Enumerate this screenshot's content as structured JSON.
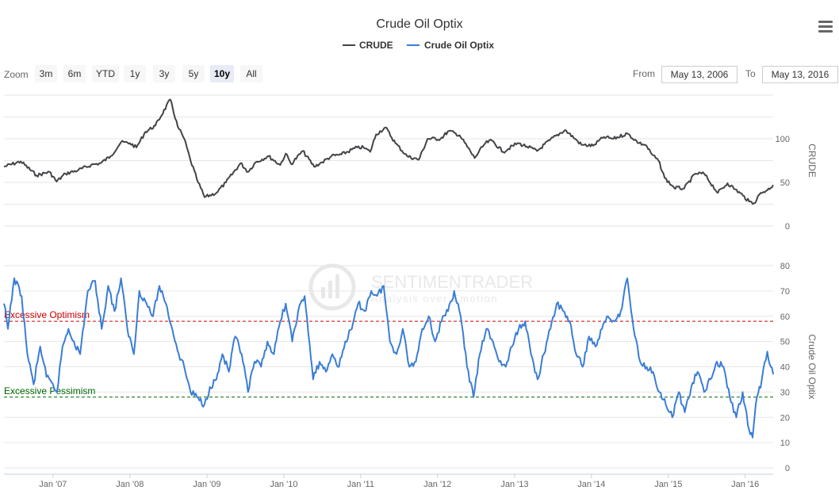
{
  "title": "Crude Oil Optix",
  "legend": [
    {
      "name": "CRUDE",
      "color": "#434348"
    },
    {
      "name": "Crude Oil Optix",
      "color": "#3a7dd6"
    }
  ],
  "zoom": {
    "label": "Zoom",
    "buttons": [
      "3m",
      "6m",
      "YTD",
      "1y",
      "3y",
      "5y",
      "10y",
      "All"
    ],
    "selected": "10y"
  },
  "range": {
    "from_label": "From",
    "from_value": "May 13, 2006",
    "to_label": "To",
    "to_value": "May 13, 2016"
  },
  "watermark": {
    "line1": "SENTIMENTRADER",
    "line2": "Analysis over Emotion"
  },
  "chart_data": {
    "type": "line",
    "x_range": [
      "2006-05-13",
      "2016-05-13"
    ],
    "x_ticks": [
      "Jan '07",
      "Jan '08",
      "Jan '09",
      "Jan '10",
      "Jan '11",
      "Jan '12",
      "Jan '13",
      "Jan '14",
      "Jan '15",
      "Jan '16"
    ],
    "panes": [
      {
        "series_name": "CRUDE",
        "color": "#434348",
        "axis_title": "CRUDE",
        "ylim": [
          0,
          150
        ],
        "y_ticks": [
          0,
          50,
          100
        ],
        "points": [
          [
            "2006-05-13",
            68
          ],
          [
            "2006-08-01",
            74
          ],
          [
            "2006-10-15",
            58
          ],
          [
            "2006-12-15",
            62
          ],
          [
            "2007-01-18",
            51
          ],
          [
            "2007-03-01",
            60
          ],
          [
            "2007-05-01",
            64
          ],
          [
            "2007-07-01",
            70
          ],
          [
            "2007-08-15",
            72
          ],
          [
            "2007-10-01",
            80
          ],
          [
            "2007-11-20",
            96
          ],
          [
            "2008-01-01",
            95
          ],
          [
            "2008-02-01",
            90
          ],
          [
            "2008-03-15",
            108
          ],
          [
            "2008-05-01",
            115
          ],
          [
            "2008-07-11",
            145
          ],
          [
            "2008-08-15",
            114
          ],
          [
            "2008-09-15",
            100
          ],
          [
            "2008-10-15",
            75
          ],
          [
            "2008-11-20",
            50
          ],
          [
            "2008-12-21",
            33
          ],
          [
            "2009-02-15",
            38
          ],
          [
            "2009-04-01",
            50
          ],
          [
            "2009-06-10",
            72
          ],
          [
            "2009-07-15",
            62
          ],
          [
            "2009-08-20",
            73
          ],
          [
            "2009-10-20",
            80
          ],
          [
            "2009-12-15",
            70
          ],
          [
            "2010-01-10",
            83
          ],
          [
            "2010-02-05",
            71
          ],
          [
            "2010-04-01",
            86
          ],
          [
            "2010-05-25",
            68
          ],
          [
            "2010-07-01",
            73
          ],
          [
            "2010-08-15",
            80
          ],
          [
            "2010-10-01",
            82
          ],
          [
            "2010-12-15",
            90
          ],
          [
            "2011-01-15",
            90
          ],
          [
            "2011-02-15",
            85
          ],
          [
            "2011-03-15",
            105
          ],
          [
            "2011-04-29",
            113
          ],
          [
            "2011-06-15",
            95
          ],
          [
            "2011-08-10",
            80
          ],
          [
            "2011-10-04",
            76
          ],
          [
            "2011-11-15",
            100
          ],
          [
            "2012-01-15",
            100
          ],
          [
            "2012-02-24",
            109
          ],
          [
            "2012-04-15",
            104
          ],
          [
            "2012-06-25",
            78
          ],
          [
            "2012-08-15",
            95
          ],
          [
            "2012-09-15",
            98
          ],
          [
            "2012-11-07",
            85
          ],
          [
            "2013-01-15",
            95
          ],
          [
            "2013-03-01",
            91
          ],
          [
            "2013-04-18",
            86
          ],
          [
            "2013-06-15",
            98
          ],
          [
            "2013-08-28",
            110
          ],
          [
            "2013-10-15",
            100
          ],
          [
            "2013-11-15",
            93
          ],
          [
            "2014-01-09",
            92
          ],
          [
            "2014-03-01",
            102
          ],
          [
            "2014-04-15",
            100
          ],
          [
            "2014-06-20",
            106
          ],
          [
            "2014-08-15",
            95
          ],
          [
            "2014-09-15",
            93
          ],
          [
            "2014-10-15",
            82
          ],
          [
            "2014-11-15",
            75
          ],
          [
            "2014-12-15",
            55
          ],
          [
            "2015-01-28",
            44
          ],
          [
            "2015-03-17",
            43
          ],
          [
            "2015-05-10",
            60
          ],
          [
            "2015-06-20",
            60
          ],
          [
            "2015-08-24",
            38
          ],
          [
            "2015-10-09",
            49
          ],
          [
            "2015-11-15",
            42
          ],
          [
            "2015-12-21",
            35
          ],
          [
            "2016-01-20",
            28
          ],
          [
            "2016-02-11",
            26
          ],
          [
            "2016-03-15",
            38
          ],
          [
            "2016-04-15",
            41
          ],
          [
            "2016-05-13",
            47
          ]
        ]
      },
      {
        "series_name": "Crude Oil Optix",
        "color": "#3a7dd6",
        "axis_title": "Crude Oil Optix",
        "ylim": [
          0,
          80
        ],
        "y_ticks": [
          0,
          10,
          20,
          30,
          40,
          50,
          60,
          70,
          80
        ],
        "points": [
          [
            "2006-05-13",
            65
          ],
          [
            "2006-06-01",
            55
          ],
          [
            "2006-07-01",
            75
          ],
          [
            "2006-08-05",
            68
          ],
          [
            "2006-09-01",
            45
          ],
          [
            "2006-10-01",
            33
          ],
          [
            "2006-11-01",
            48
          ],
          [
            "2006-12-01",
            36
          ],
          [
            "2007-01-20",
            30
          ],
          [
            "2007-02-15",
            48
          ],
          [
            "2007-03-15",
            55
          ],
          [
            "2007-04-10",
            50
          ],
          [
            "2007-05-10",
            45
          ],
          [
            "2007-06-15",
            70
          ],
          [
            "2007-07-20",
            74
          ],
          [
            "2007-08-20",
            55
          ],
          [
            "2007-09-20",
            72
          ],
          [
            "2007-10-20",
            62
          ],
          [
            "2007-11-20",
            75
          ],
          [
            "2007-12-20",
            55
          ],
          [
            "2008-01-20",
            45
          ],
          [
            "2008-02-15",
            70
          ],
          [
            "2008-03-20",
            65
          ],
          [
            "2008-04-20",
            60
          ],
          [
            "2008-05-20",
            72
          ],
          [
            "2008-06-20",
            65
          ],
          [
            "2008-07-20",
            55
          ],
          [
            "2008-08-20",
            45
          ],
          [
            "2008-09-15",
            40
          ],
          [
            "2008-10-15",
            30
          ],
          [
            "2008-11-15",
            28
          ],
          [
            "2008-12-20",
            25
          ],
          [
            "2009-01-15",
            32
          ],
          [
            "2009-02-15",
            35
          ],
          [
            "2009-03-15",
            45
          ],
          [
            "2009-04-15",
            38
          ],
          [
            "2009-05-15",
            52
          ],
          [
            "2009-06-15",
            45
          ],
          [
            "2009-07-15",
            30
          ],
          [
            "2009-08-15",
            42
          ],
          [
            "2009-09-15",
            40
          ],
          [
            "2009-10-15",
            50
          ],
          [
            "2009-11-15",
            45
          ],
          [
            "2009-12-15",
            58
          ],
          [
            "2010-01-10",
            65
          ],
          [
            "2010-02-10",
            50
          ],
          [
            "2010-03-10",
            62
          ],
          [
            "2010-04-10",
            68
          ],
          [
            "2010-05-20",
            35
          ],
          [
            "2010-06-20",
            42
          ],
          [
            "2010-07-20",
            38
          ],
          [
            "2010-08-20",
            45
          ],
          [
            "2010-09-20",
            40
          ],
          [
            "2010-10-20",
            50
          ],
          [
            "2010-11-20",
            55
          ],
          [
            "2010-12-20",
            65
          ],
          [
            "2011-01-20",
            62
          ],
          [
            "2011-02-20",
            70
          ],
          [
            "2011-03-20",
            68
          ],
          [
            "2011-04-20",
            72
          ],
          [
            "2011-05-20",
            50
          ],
          [
            "2011-06-20",
            45
          ],
          [
            "2011-07-20",
            55
          ],
          [
            "2011-08-20",
            40
          ],
          [
            "2011-09-20",
            42
          ],
          [
            "2011-10-20",
            55
          ],
          [
            "2011-11-20",
            60
          ],
          [
            "2011-12-20",
            50
          ],
          [
            "2012-01-20",
            58
          ],
          [
            "2012-02-20",
            62
          ],
          [
            "2012-03-20",
            70
          ],
          [
            "2012-04-20",
            60
          ],
          [
            "2012-05-20",
            40
          ],
          [
            "2012-06-20",
            28
          ],
          [
            "2012-07-20",
            45
          ],
          [
            "2012-08-20",
            55
          ],
          [
            "2012-09-20",
            50
          ],
          [
            "2012-10-20",
            42
          ],
          [
            "2012-11-20",
            40
          ],
          [
            "2012-12-20",
            48
          ],
          [
            "2013-01-20",
            55
          ],
          [
            "2013-02-20",
            58
          ],
          [
            "2013-03-20",
            45
          ],
          [
            "2013-04-20",
            35
          ],
          [
            "2013-05-20",
            45
          ],
          [
            "2013-06-20",
            55
          ],
          [
            "2013-07-20",
            65
          ],
          [
            "2013-08-20",
            62
          ],
          [
            "2013-09-20",
            58
          ],
          [
            "2013-10-20",
            45
          ],
          [
            "2013-11-20",
            40
          ],
          [
            "2013-12-20",
            52
          ],
          [
            "2014-01-20",
            48
          ],
          [
            "2014-02-20",
            55
          ],
          [
            "2014-03-20",
            60
          ],
          [
            "2014-04-20",
            58
          ],
          [
            "2014-05-20",
            62
          ],
          [
            "2014-06-20",
            75
          ],
          [
            "2014-07-20",
            55
          ],
          [
            "2014-08-20",
            42
          ],
          [
            "2014-09-20",
            40
          ],
          [
            "2014-10-20",
            38
          ],
          [
            "2014-11-20",
            30
          ],
          [
            "2014-12-20",
            25
          ],
          [
            "2015-01-20",
            20
          ],
          [
            "2015-02-20",
            30
          ],
          [
            "2015-03-20",
            22
          ],
          [
            "2015-04-20",
            32
          ],
          [
            "2015-05-20",
            38
          ],
          [
            "2015-06-20",
            30
          ],
          [
            "2015-07-20",
            35
          ],
          [
            "2015-08-20",
            42
          ],
          [
            "2015-09-20",
            40
          ],
          [
            "2015-10-20",
            28
          ],
          [
            "2015-11-20",
            20
          ],
          [
            "2015-12-20",
            30
          ],
          [
            "2016-01-20",
            15
          ],
          [
            "2016-02-05",
            12
          ],
          [
            "2016-02-20",
            25
          ],
          [
            "2016-03-20",
            35
          ],
          [
            "2016-04-15",
            46
          ],
          [
            "2016-05-13",
            37
          ]
        ],
        "plot_lines": [
          {
            "value": 58,
            "label": "Excessive Optimism",
            "color": "#cc0000"
          },
          {
            "value": 28,
            "label": "Excessive Pessimism",
            "color": "#006600"
          }
        ]
      }
    ]
  }
}
